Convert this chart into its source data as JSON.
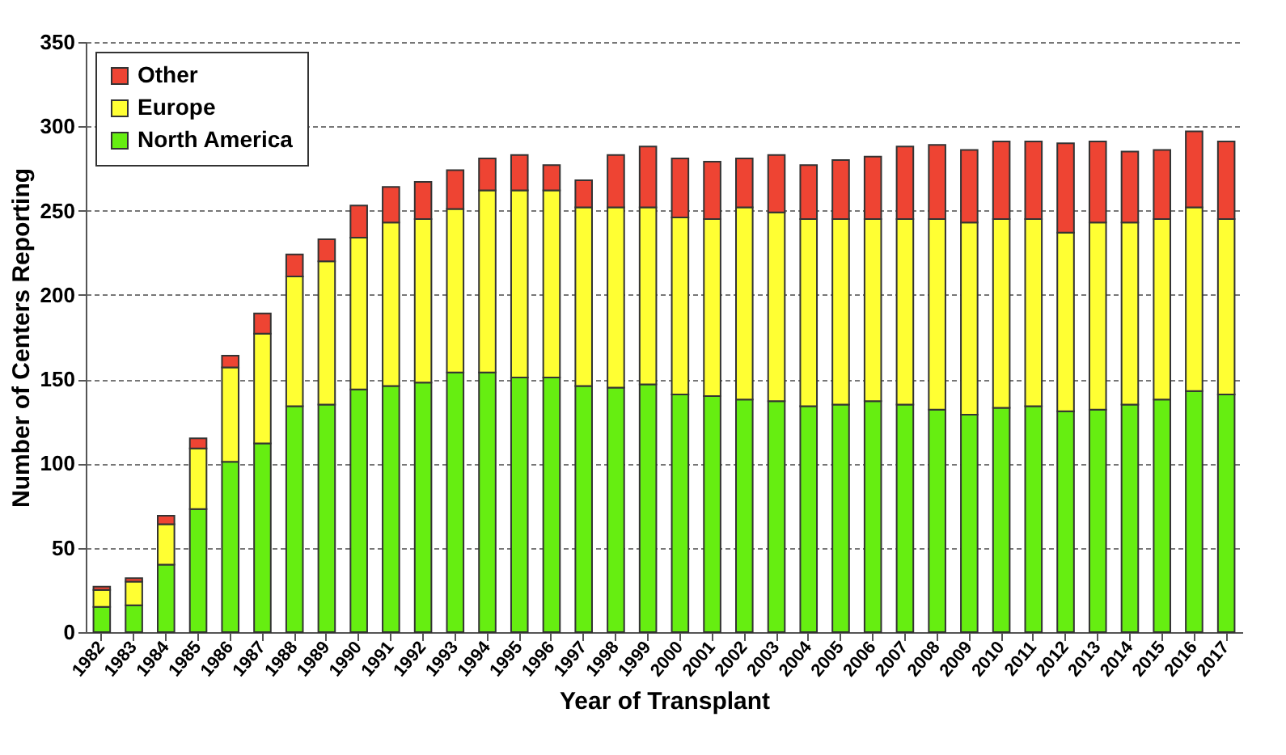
{
  "chart_data": {
    "type": "bar",
    "stacked": true,
    "xlabel": "Year of Transplant",
    "ylabel": "Number of Centers Reporting",
    "categories": [
      "1982",
      "1983",
      "1984",
      "1985",
      "1986",
      "1987",
      "1988",
      "1989",
      "1990",
      "1991",
      "1992",
      "1993",
      "1994",
      "1995",
      "1996",
      "1997",
      "1998",
      "1999",
      "2000",
      "2001",
      "2002",
      "2003",
      "2004",
      "2005",
      "2006",
      "2007",
      "2008",
      "2009",
      "2010",
      "2011",
      "2012",
      "2013",
      "2014",
      "2015",
      "2016",
      "2017"
    ],
    "series": [
      {
        "name": "North America",
        "color": "#66ee11",
        "values": [
          15,
          16,
          40,
          73,
          101,
          112,
          134,
          135,
          144,
          146,
          148,
          154,
          154,
          151,
          151,
          146,
          145,
          147,
          141,
          140,
          138,
          137,
          134,
          135,
          137,
          135,
          132,
          129,
          133,
          134,
          131,
          132,
          135,
          138,
          143,
          141
        ]
      },
      {
        "name": "Europe",
        "color": "#ffff33",
        "values": [
          10,
          14,
          24,
          36,
          56,
          65,
          77,
          85,
          90,
          97,
          97,
          97,
          108,
          111,
          111,
          106,
          107,
          105,
          105,
          105,
          114,
          112,
          111,
          110,
          108,
          110,
          113,
          114,
          112,
          111,
          106,
          111,
          108,
          107,
          109,
          104
        ]
      },
      {
        "name": "Other",
        "color": "#ee4433",
        "values": [
          2,
          2,
          5,
          6,
          7,
          12,
          13,
          13,
          19,
          21,
          22,
          23,
          19,
          21,
          15,
          16,
          31,
          36,
          35,
          34,
          29,
          34,
          32,
          35,
          37,
          43,
          44,
          43,
          46,
          46,
          53,
          48,
          42,
          41,
          45,
          46
        ]
      }
    ],
    "ylim": [
      0,
      350
    ],
    "yticks": [
      0,
      50,
      100,
      150,
      200,
      250,
      300,
      350
    ],
    "grid": "y",
    "legend": "top left"
  }
}
